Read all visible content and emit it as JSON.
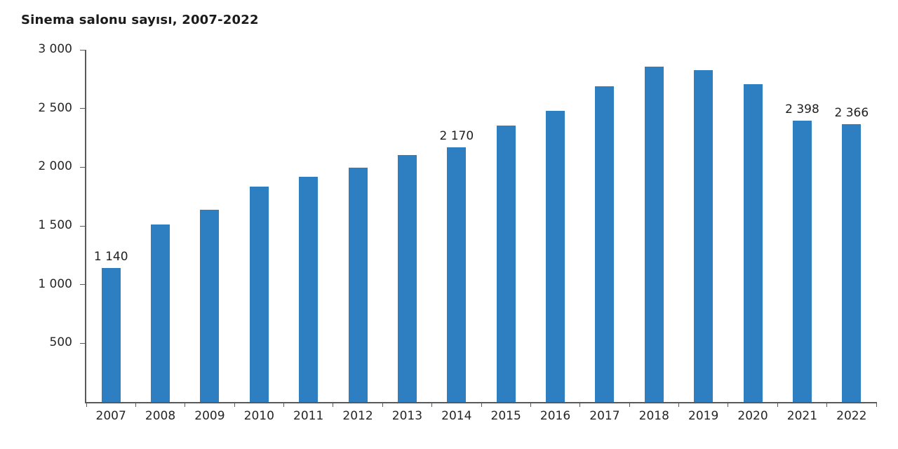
{
  "chart_data": {
    "type": "bar",
    "title": "Sinema salonu sayısı, 2007-2022",
    "categories": [
      "2007",
      "2008",
      "2009",
      "2010",
      "2011",
      "2012",
      "2013",
      "2014",
      "2015",
      "2016",
      "2017",
      "2018",
      "2019",
      "2020",
      "2021",
      "2022"
    ],
    "values": [
      1140,
      1514,
      1636,
      1834,
      1917,
      1998,
      2102,
      2170,
      2356,
      2483,
      2692,
      2858,
      2829,
      2706,
      2398,
      2366
    ],
    "bar_labels": {
      "2007": "1 140",
      "2014": "2 170",
      "2021": "2 398",
      "2022": "2 366"
    },
    "y_ticks": [
      {
        "value": 3000,
        "label": "3 000"
      },
      {
        "value": 2500,
        "label": "2 500"
      },
      {
        "value": 2000,
        "label": "2 000"
      },
      {
        "value": 1500,
        "label": "1 500"
      },
      {
        "value": 1000,
        "label": "1 000"
      },
      {
        "value": 500,
        "label": "500"
      }
    ],
    "xlabel": "",
    "ylabel": "",
    "ylim": [
      0,
      3000
    ],
    "grid": false,
    "legend": false,
    "bar_color": "#2d7fc1",
    "axis_color": "#595959",
    "text_color": "#262626"
  }
}
